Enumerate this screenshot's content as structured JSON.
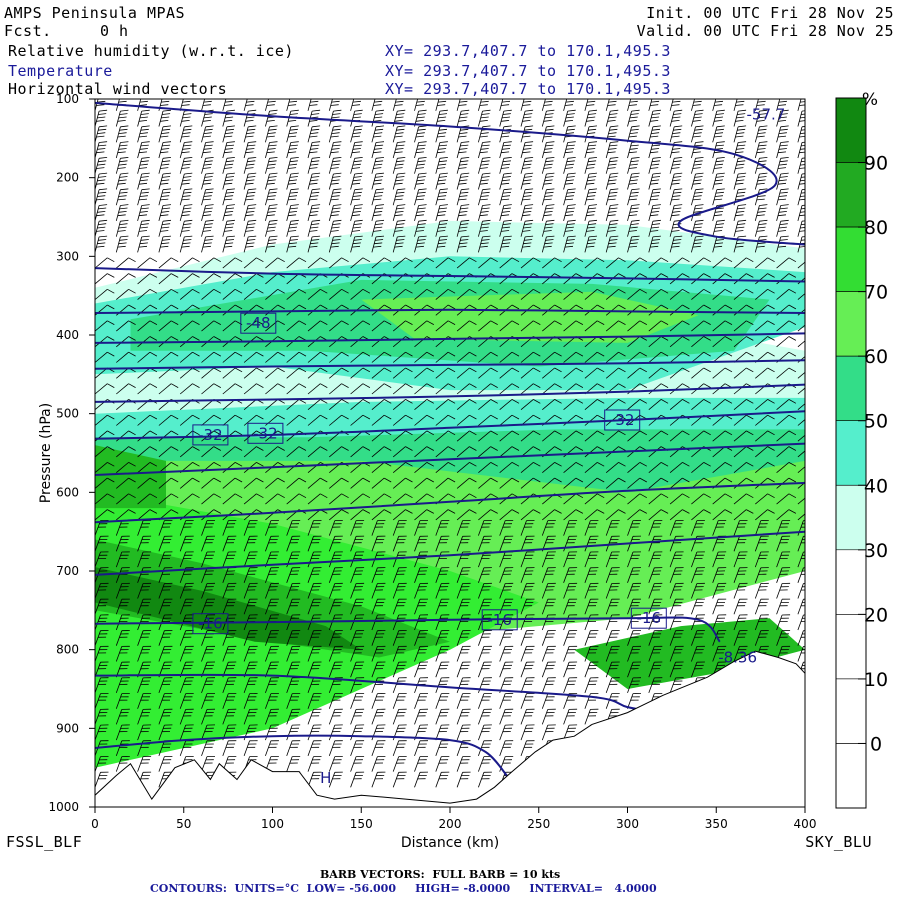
{
  "header": {
    "model": "AMPS Peninsula MPAS",
    "fcst_label": "Fcst.",
    "fcst_value": "0 h",
    "init": "Init. 00 UTC Fri 28 Nov 25",
    "valid": "Valid. 00 UTC Fri 28 Nov 25",
    "fields": [
      {
        "name": "Relative humidity (w.r.t. ice)",
        "xy": "XY= 293.7,407.7 to 170.1,495.3"
      },
      {
        "name": "Temperature",
        "xy": "XY= 293.7,407.7 to 170.1,495.3"
      },
      {
        "name": "Horizontal wind vectors",
        "xy": "XY= 293.7,407.7 to 170.1,495.3"
      }
    ]
  },
  "corners": {
    "left": "FSSL_BLF",
    "right": "SKY_BLU"
  },
  "footer": {
    "line1": "BARB VECTORS:  FULL BARB = 10 kts",
    "line2": "CONTOURS:  UNITS=°C  LOW= -56.000     HIGH= -8.0000     INTERVAL=   4.0000"
  },
  "colors": {
    "contour": "#1a1a8a",
    "rh_30_40": "#ccffee",
    "rh_40_50": "#55eecc",
    "rh_50_60": "#33dd88",
    "rh_60_70": "#66ee55",
    "rh_70_80": "#33ee33",
    "rh_80_90": "#22bb22",
    "rh_90_100": "#118811",
    "terrain": "#ffffff"
  },
  "chart_data": {
    "type": "heatmap",
    "xlabel": "Distance (km)",
    "ylabel": "Pressure (hPa)",
    "xlim": [
      0,
      400
    ],
    "ylim": [
      1000,
      100
    ],
    "x_ticks": [
      0,
      50,
      100,
      150,
      200,
      250,
      300,
      350,
      400
    ],
    "y_ticks": [
      100,
      200,
      300,
      400,
      500,
      600,
      700,
      800,
      900,
      1000
    ],
    "colorbar": {
      "unit": "%",
      "ticks": [
        90,
        80,
        70,
        60,
        50,
        40,
        30,
        20,
        10,
        0
      ],
      "levels": [
        {
          "range": [
            90,
            100
          ],
          "color": "#118811"
        },
        {
          "range": [
            80,
            90
          ],
          "color": "#22aa22"
        },
        {
          "range": [
            70,
            80
          ],
          "color": "#33dd33"
        },
        {
          "range": [
            60,
            70
          ],
          "color": "#66ee55"
        },
        {
          "range": [
            50,
            60
          ],
          "color": "#33dd88"
        },
        {
          "range": [
            40,
            50
          ],
          "color": "#55eecc"
        },
        {
          "range": [
            30,
            40
          ],
          "color": "#ccffee"
        },
        {
          "range": [
            20,
            30
          ],
          "color": "#ffffff"
        },
        {
          "range": [
            10,
            20
          ],
          "color": "#ffffff"
        },
        {
          "range": [
            0,
            10
          ],
          "color": "#ffffff"
        },
        {
          "range": [
            -10,
            0
          ],
          "color": "#ffffff"
        }
      ]
    },
    "contour_labels": [
      {
        "text": "-57.7",
        "x": 378,
        "p": 120
      },
      {
        "text": "-48",
        "x": 92,
        "p": 385
      },
      {
        "text": "-32",
        "x": 65,
        "p": 527
      },
      {
        "text": "-32",
        "x": 96,
        "p": 525
      },
      {
        "text": "-32",
        "x": 297,
        "p": 508
      },
      {
        "text": "-16",
        "x": 65,
        "p": 767
      },
      {
        "text": "-16",
        "x": 228,
        "p": 762
      },
      {
        "text": "-16",
        "x": 312,
        "p": 760
      },
      {
        "text": "-8.36",
        "x": 362,
        "p": 810
      },
      {
        "text": "H",
        "x": 130,
        "p": 963
      }
    ],
    "isotherms": [
      [
        [
          0,
          105
        ],
        [
          100,
          122
        ],
        [
          200,
          135
        ],
        [
          300,
          153
        ],
        [
          360,
          170
        ],
        [
          383,
          210
        ],
        [
          330,
          255
        ],
        [
          350,
          275
        ],
        [
          400,
          285
        ]
      ],
      [
        [
          0,
          315
        ],
        [
          100,
          322
        ],
        [
          200,
          325
        ],
        [
          300,
          328
        ],
        [
          400,
          332
        ]
      ],
      [
        [
          0,
          372
        ],
        [
          100,
          370
        ],
        [
          200,
          368
        ],
        [
          300,
          370
        ],
        [
          400,
          372
        ]
      ],
      [
        [
          0,
          410
        ],
        [
          100,
          408
        ],
        [
          200,
          405
        ],
        [
          300,
          402
        ],
        [
          400,
          398
        ]
      ],
      [
        [
          0,
          443
        ],
        [
          100,
          440
        ],
        [
          200,
          438
        ],
        [
          300,
          436
        ],
        [
          400,
          432
        ]
      ],
      [
        [
          0,
          485
        ],
        [
          100,
          482
        ],
        [
          200,
          478
        ],
        [
          300,
          472
        ],
        [
          400,
          463
        ]
      ],
      [
        [
          0,
          532
        ],
        [
          100,
          527
        ],
        [
          200,
          518
        ],
        [
          300,
          508
        ],
        [
          400,
          497
        ]
      ],
      [
        [
          0,
          578
        ],
        [
          100,
          568
        ],
        [
          200,
          558
        ],
        [
          300,
          548
        ],
        [
          400,
          538
        ]
      ],
      [
        [
          0,
          638
        ],
        [
          100,
          626
        ],
        [
          200,
          612
        ],
        [
          300,
          598
        ],
        [
          400,
          588
        ]
      ],
      [
        [
          0,
          705
        ],
        [
          100,
          692
        ],
        [
          200,
          680
        ],
        [
          300,
          665
        ],
        [
          400,
          650
        ]
      ],
      [
        [
          0,
          767
        ],
        [
          100,
          765
        ],
        [
          200,
          762
        ],
        [
          300,
          760
        ],
        [
          340,
          762
        ],
        [
          352,
          790
        ]
      ],
      [
        [
          0,
          833
        ],
        [
          100,
          833
        ],
        [
          200,
          848
        ],
        [
          280,
          860
        ],
        [
          300,
          873
        ],
        [
          318,
          880
        ]
      ],
      [
        [
          0,
          925
        ],
        [
          50,
          915
        ],
        [
          100,
          910
        ],
        [
          150,
          910
        ],
        [
          200,
          915
        ],
        [
          220,
          930
        ],
        [
          232,
          960
        ]
      ]
    ],
    "rh_regions": [
      {
        "level": "rh_30_40",
        "points": [
          [
            0,
            340
          ],
          [
            100,
            285
          ],
          [
            200,
            255
          ],
          [
            300,
            260
          ],
          [
            400,
            290
          ],
          [
            400,
            390
          ],
          [
            300,
            345
          ],
          [
            200,
            330
          ],
          [
            100,
            360
          ],
          [
            0,
            450
          ]
        ]
      },
      {
        "level": "rh_30_40",
        "points": [
          [
            0,
            450
          ],
          [
            120,
            425
          ],
          [
            250,
            410
          ],
          [
            350,
            400
          ],
          [
            400,
            420
          ],
          [
            400,
            540
          ],
          [
            300,
            560
          ],
          [
            200,
            540
          ],
          [
            100,
            520
          ],
          [
            0,
            520
          ]
        ]
      },
      {
        "level": "rh_40_50",
        "points": [
          [
            0,
            360
          ],
          [
            100,
            320
          ],
          [
            200,
            300
          ],
          [
            300,
            305
          ],
          [
            400,
            320
          ],
          [
            400,
            390
          ],
          [
            300,
            470
          ],
          [
            200,
            470
          ],
          [
            100,
            440
          ],
          [
            0,
            450
          ]
        ]
      },
      {
        "level": "rh_40_50",
        "points": [
          [
            0,
            500
          ],
          [
            150,
            485
          ],
          [
            300,
            480
          ],
          [
            400,
            480
          ],
          [
            400,
            620
          ],
          [
            250,
            700
          ],
          [
            150,
            690
          ],
          [
            0,
            540
          ]
        ]
      },
      {
        "level": "rh_50_60",
        "points": [
          [
            20,
            380
          ],
          [
            150,
            330
          ],
          [
            280,
            335
          ],
          [
            380,
            355
          ],
          [
            360,
            420
          ],
          [
            250,
            440
          ],
          [
            120,
            420
          ],
          [
            20,
            420
          ]
        ]
      },
      {
        "level": "rh_50_60",
        "points": [
          [
            0,
            530
          ],
          [
            120,
            530
          ],
          [
            260,
            520
          ],
          [
            400,
            520
          ],
          [
            400,
            640
          ],
          [
            320,
            650
          ],
          [
            250,
            640
          ],
          [
            200,
            700
          ],
          [
            0,
            700
          ]
        ]
      },
      {
        "level": "rh_60_70",
        "points": [
          [
            150,
            355
          ],
          [
            280,
            345
          ],
          [
            340,
            375
          ],
          [
            300,
            410
          ],
          [
            180,
            405
          ]
        ]
      },
      {
        "level": "rh_60_70",
        "points": [
          [
            0,
            560
          ],
          [
            150,
            560
          ],
          [
            300,
            600
          ],
          [
            400,
            560
          ],
          [
            400,
            700
          ],
          [
            300,
            760
          ],
          [
            200,
            780
          ],
          [
            0,
            760
          ]
        ]
      },
      {
        "level": "rh_70_80",
        "points": [
          [
            0,
            600
          ],
          [
            100,
            640
          ],
          [
            200,
            700
          ],
          [
            250,
            740
          ],
          [
            200,
            800
          ],
          [
            100,
            900
          ],
          [
            0,
            950
          ]
        ]
      },
      {
        "level": "rh_80_90",
        "points": [
          [
            0,
            540
          ],
          [
            40,
            560
          ],
          [
            40,
            620
          ],
          [
            0,
            620
          ]
        ]
      },
      {
        "level": "rh_80_90",
        "points": [
          [
            0,
            660
          ],
          [
            60,
            690
          ],
          [
            150,
            745
          ],
          [
            200,
            790
          ],
          [
            160,
            810
          ],
          [
            100,
            790
          ],
          [
            0,
            750
          ]
        ]
      },
      {
        "level": "rh_90_100",
        "points": [
          [
            0,
            695
          ],
          [
            60,
            725
          ],
          [
            130,
            770
          ],
          [
            150,
            800
          ],
          [
            90,
            790
          ],
          [
            0,
            740
          ]
        ]
      },
      {
        "level": "rh_80_90",
        "points": [
          [
            270,
            800
          ],
          [
            330,
            770
          ],
          [
            380,
            760
          ],
          [
            400,
            800
          ],
          [
            350,
            830
          ],
          [
            300,
            850
          ]
        ]
      }
    ],
    "terrain": [
      [
        0,
        985
      ],
      [
        12,
        960
      ],
      [
        20,
        945
      ],
      [
        32,
        990
      ],
      [
        45,
        950
      ],
      [
        56,
        940
      ],
      [
        65,
        965
      ],
      [
        70,
        945
      ],
      [
        80,
        965
      ],
      [
        88,
        940
      ],
      [
        100,
        955
      ],
      [
        115,
        955
      ],
      [
        125,
        985
      ],
      [
        135,
        990
      ],
      [
        150,
        985
      ],
      [
        175,
        990
      ],
      [
        200,
        995
      ],
      [
        215,
        990
      ],
      [
        225,
        975
      ],
      [
        235,
        955
      ],
      [
        248,
        930
      ],
      [
        258,
        915
      ],
      [
        270,
        910
      ],
      [
        280,
        895
      ],
      [
        300,
        880
      ],
      [
        320,
        858
      ],
      [
        345,
        835
      ],
      [
        360,
        815
      ],
      [
        372,
        802
      ],
      [
        385,
        810
      ],
      [
        395,
        818
      ],
      [
        400,
        830
      ]
    ]
  }
}
